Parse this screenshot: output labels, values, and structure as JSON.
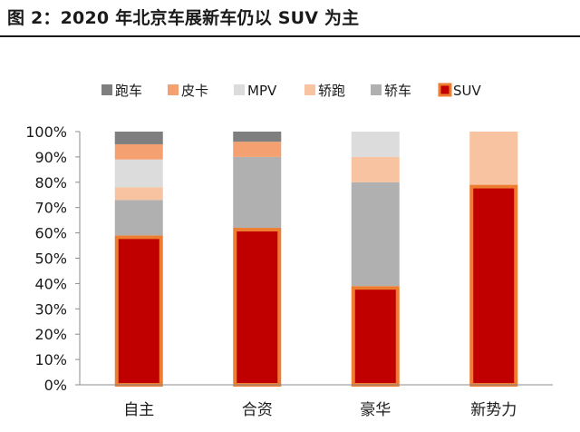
{
  "title": "图 2：2020 年北京车展新车仍以 SUV 为主",
  "chart_data": {
    "type": "bar",
    "stacked": true,
    "normalized": true,
    "categories": [
      "自主",
      "合资",
      "豪华",
      "新势力"
    ],
    "series": [
      {
        "name": "SUV",
        "color": "#c00000",
        "values": [
          59,
          62,
          39,
          79
        ]
      },
      {
        "name": "轿车",
        "color": "#b0b0b0",
        "values": [
          14,
          28,
          41,
          0
        ]
      },
      {
        "name": "轿跑",
        "color": "#f7c3a0",
        "values": [
          5,
          0,
          10,
          21
        ]
      },
      {
        "name": "MPV",
        "color": "#dcdcdc",
        "values": [
          11,
          0,
          10,
          0
        ]
      },
      {
        "name": "皮卡",
        "color": "#f4a070",
        "values": [
          6,
          6,
          0,
          0
        ]
      },
      {
        "name": "跑车",
        "color": "#7f7f7f",
        "values": [
          5,
          4,
          0,
          0
        ]
      }
    ],
    "legend_order": [
      "跑车",
      "皮卡",
      "MPV",
      "轿跑",
      "轿车",
      "SUV"
    ],
    "highlight_series": "SUV",
    "highlight_border_color": "#ed7d31",
    "ylim": [
      0,
      100
    ],
    "yticks": [
      "0%",
      "10%",
      "20%",
      "30%",
      "40%",
      "50%",
      "60%",
      "70%",
      "80%",
      "90%",
      "100%"
    ],
    "legend_position": "top",
    "grid": false
  }
}
